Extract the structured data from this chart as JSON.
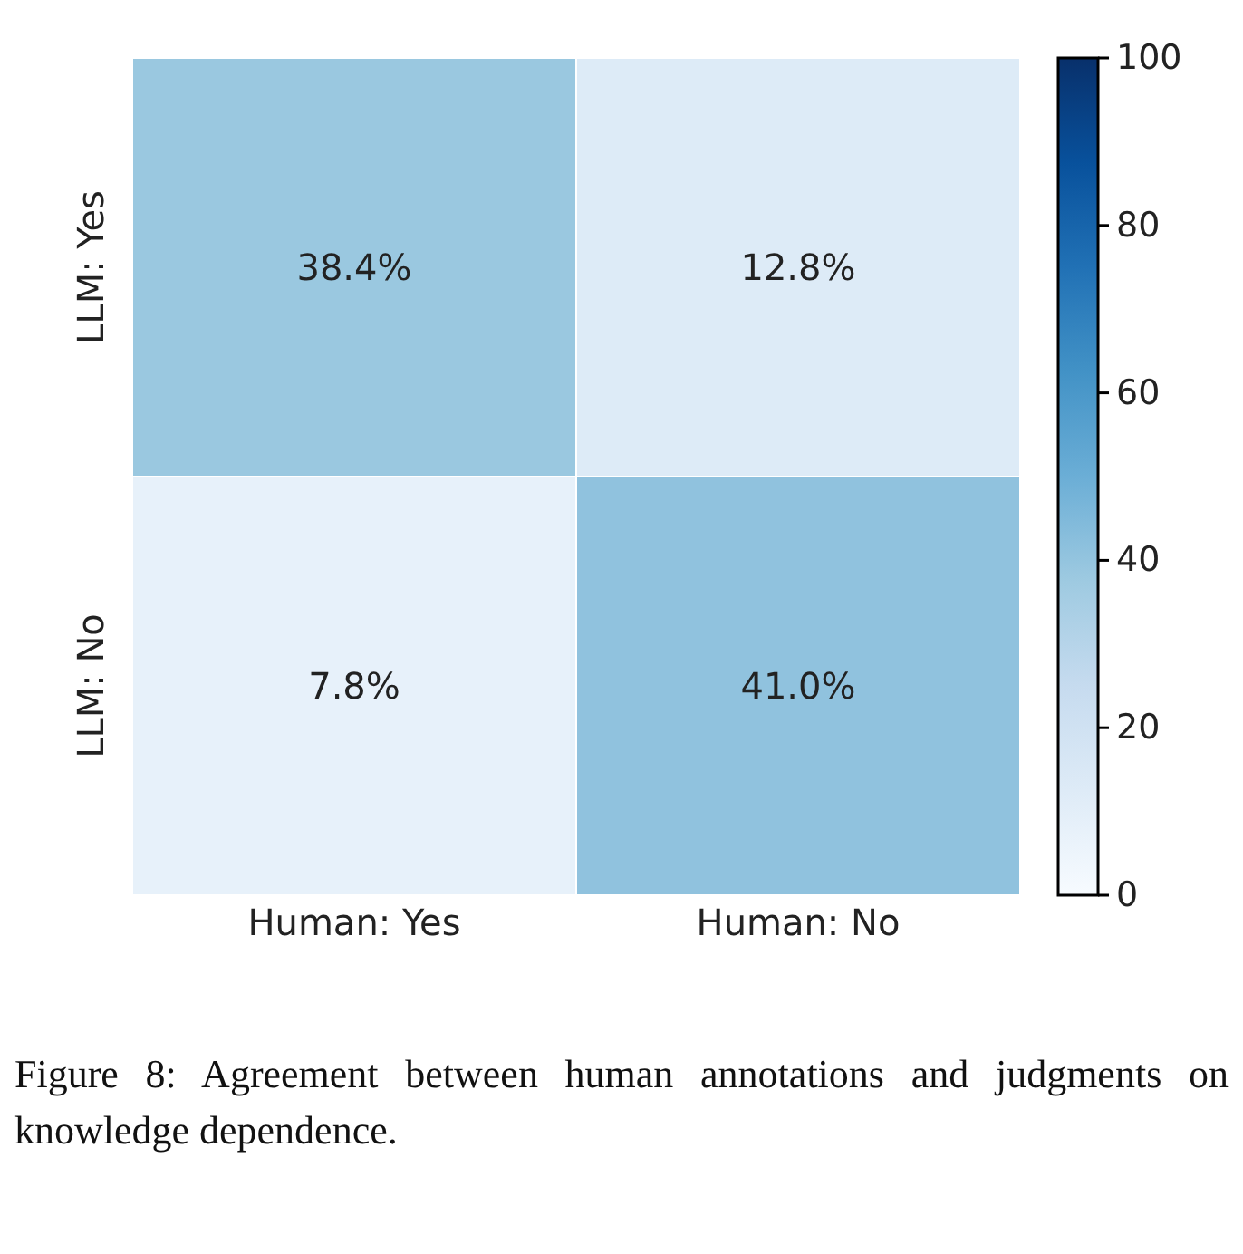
{
  "chart_data": {
    "type": "heatmap",
    "categories": [
      "Human: Yes",
      "Human: No"
    ],
    "y_categories": [
      "LLM: Yes",
      "LLM: No"
    ],
    "cells": [
      [
        38.4,
        12.8
      ],
      [
        7.8,
        41.0
      ]
    ],
    "cell_labels": [
      [
        "38.4%",
        "12.8%"
      ],
      [
        "7.8%",
        "41.0%"
      ]
    ],
    "clim": [
      0,
      100
    ],
    "cticks": [
      0,
      20,
      40,
      60,
      80,
      100
    ],
    "annotations": [
      "Figure 8:  Agreement between human annotations and judgments on knowledge dependence."
    ]
  }
}
